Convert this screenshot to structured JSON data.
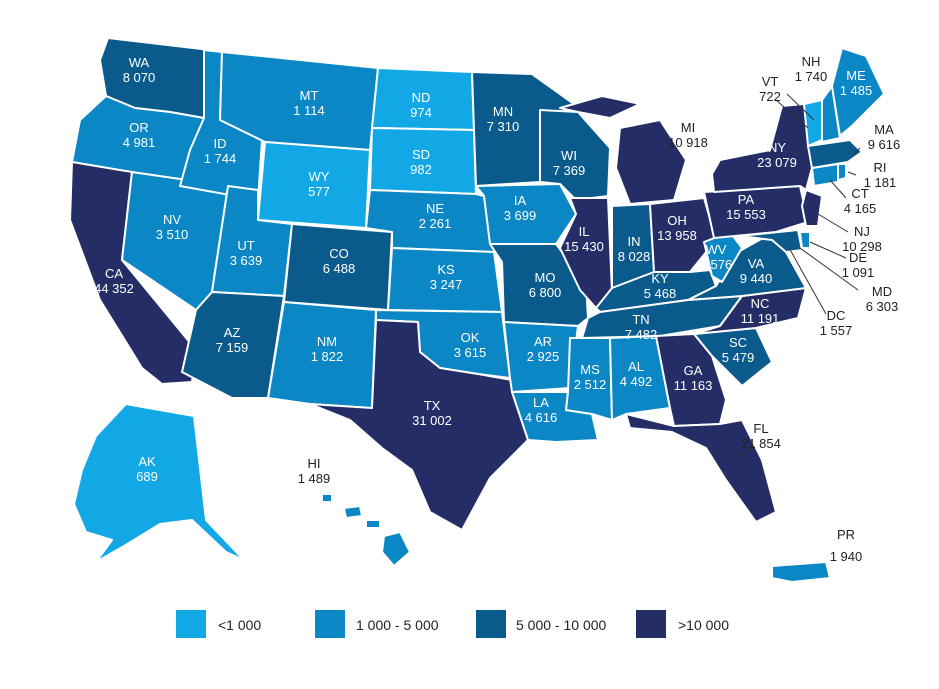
{
  "palette": {
    "lt1000": "#12a8e6",
    "r1000_5000": "#0a87c4",
    "r5000_10000": "#0b5a8c",
    "gt10000": "#252d66"
  },
  "legend": [
    {
      "label": "<1 000",
      "bucket": "lt1000"
    },
    {
      "label": "1 000 - 5 000",
      "bucket": "r1000_5000"
    },
    {
      "label": "5 000 - 10 000",
      "bucket": "r5000_10000"
    },
    {
      "label": ">10 000",
      "bucket": "gt10000"
    }
  ],
  "states": {
    "WA": {
      "value": "8 070",
      "bucket": "r5000_10000"
    },
    "OR": {
      "value": "4 981",
      "bucket": "r1000_5000"
    },
    "CA": {
      "value": "44 352",
      "bucket": "gt10000"
    },
    "ID": {
      "value": "1 744",
      "bucket": "r1000_5000"
    },
    "NV": {
      "value": "3 510",
      "bucket": "r1000_5000"
    },
    "MT": {
      "value": "1 114",
      "bucket": "r1000_5000"
    },
    "WY": {
      "value": "577",
      "bucket": "lt1000"
    },
    "UT": {
      "value": "3 639",
      "bucket": "r1000_5000"
    },
    "AZ": {
      "value": "7 159",
      "bucket": "r5000_10000"
    },
    "CO": {
      "value": "6 488",
      "bucket": "r5000_10000"
    },
    "NM": {
      "value": "1 822",
      "bucket": "r1000_5000"
    },
    "ND": {
      "value": "974",
      "bucket": "lt1000"
    },
    "SD": {
      "value": "982",
      "bucket": "lt1000"
    },
    "NE": {
      "value": "2 261",
      "bucket": "r1000_5000"
    },
    "KS": {
      "value": "3 247",
      "bucket": "r1000_5000"
    },
    "OK": {
      "value": "3 615",
      "bucket": "r1000_5000"
    },
    "TX": {
      "value": "31 002",
      "bucket": "gt10000"
    },
    "MN": {
      "value": "7 310",
      "bucket": "r5000_10000"
    },
    "IA": {
      "value": "3 699",
      "bucket": "r1000_5000"
    },
    "MO": {
      "value": "6 800",
      "bucket": "r5000_10000"
    },
    "AR": {
      "value": "2 925",
      "bucket": "r1000_5000"
    },
    "LA": {
      "value": "4 616",
      "bucket": "r1000_5000"
    },
    "WI": {
      "value": "7 369",
      "bucket": "r5000_10000"
    },
    "IL": {
      "value": "15 430",
      "bucket": "gt10000"
    },
    "MI": {
      "value": "10 918",
      "bucket": "gt10000"
    },
    "IN": {
      "value": "8 028",
      "bucket": "r5000_10000"
    },
    "OH": {
      "value": "13 958",
      "bucket": "gt10000"
    },
    "KY": {
      "value": "5 468",
      "bucket": "r5000_10000"
    },
    "TN": {
      "value": "7 482",
      "bucket": "r5000_10000"
    },
    "MS": {
      "value": "2 512",
      "bucket": "r1000_5000"
    },
    "AL": {
      "value": "4 492",
      "bucket": "r1000_5000"
    },
    "GA": {
      "value": "11 163",
      "bucket": "gt10000"
    },
    "FL": {
      "value": "21 854",
      "bucket": "gt10000"
    },
    "SC": {
      "value": "5 479",
      "bucket": "r5000_10000"
    },
    "NC": {
      "value": "11 191",
      "bucket": "gt10000"
    },
    "VA": {
      "value": "9 440",
      "bucket": "r5000_10000"
    },
    "WV": {
      "value": "1 576",
      "bucket": "r1000_5000"
    },
    "PA": {
      "value": "15 553",
      "bucket": "gt10000"
    },
    "NY": {
      "value": "23 079",
      "bucket": "gt10000"
    },
    "NJ": {
      "value": "10 298",
      "bucket": "gt10000"
    },
    "DE": {
      "value": "1 091",
      "bucket": "r1000_5000"
    },
    "MD": {
      "value": "6 303",
      "bucket": "r5000_10000"
    },
    "DC": {
      "value": "1 557",
      "bucket": "r1000_5000"
    },
    "CT": {
      "value": "4 165",
      "bucket": "r1000_5000"
    },
    "RI": {
      "value": "1 181",
      "bucket": "r1000_5000"
    },
    "MA": {
      "value": "9 616",
      "bucket": "r5000_10000"
    },
    "VT": {
      "value": "722",
      "bucket": "lt1000"
    },
    "NH": {
      "value": "1 740",
      "bucket": "r1000_5000"
    },
    "ME": {
      "value": "1 485",
      "bucket": "r1000_5000"
    },
    "AK": {
      "value": "689",
      "bucket": "lt1000"
    },
    "HI": {
      "value": "1 489",
      "bucket": "r1000_5000"
    },
    "PR": {
      "value": "1 940",
      "bucket": "r1000_5000"
    }
  }
}
